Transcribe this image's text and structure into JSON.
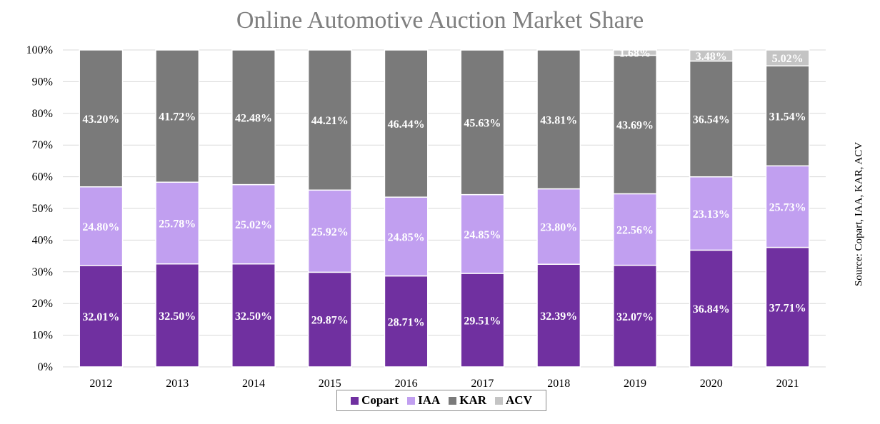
{
  "title": "Online Automotive Auction Market Share",
  "source": "Source: Copart, IAA, KAR, ACV",
  "chart_data": {
    "type": "bar",
    "stacked": true,
    "title": "Online Automotive Auction Market Share",
    "categories": [
      "2012",
      "2013",
      "2014",
      "2015",
      "2016",
      "2017",
      "2018",
      "2019",
      "2020",
      "2021"
    ],
    "ylim": [
      0,
      100
    ],
    "yticks": [
      "0%",
      "10%",
      "20%",
      "30%",
      "40%",
      "50%",
      "60%",
      "70%",
      "80%",
      "90%",
      "100%"
    ],
    "grid": true,
    "legend_position": "bottom",
    "series": [
      {
        "name": "Copart",
        "color": "#7030a0",
        "values": [
          32.01,
          32.5,
          32.5,
          29.87,
          28.71,
          29.51,
          32.39,
          32.07,
          36.84,
          37.71
        ],
        "labels": [
          "32.01%",
          "32.50%",
          "32.50%",
          "29.87%",
          "28.71%",
          "29.51%",
          "32.39%",
          "32.07%",
          "36.84%",
          "37.71%"
        ]
      },
      {
        "name": "IAA",
        "color": "#c19ff0",
        "values": [
          24.8,
          25.78,
          25.02,
          25.92,
          24.85,
          24.85,
          23.8,
          22.56,
          23.13,
          25.73
        ],
        "labels": [
          "24.80%",
          "25.78%",
          "25.02%",
          "25.92%",
          "24.85%",
          "24.85%",
          "23.80%",
          "22.56%",
          "23.13%",
          "25.73%"
        ]
      },
      {
        "name": "KAR",
        "color": "#7a7a7a",
        "values": [
          43.2,
          41.72,
          42.48,
          44.21,
          46.44,
          45.63,
          43.81,
          43.69,
          36.54,
          31.54
        ],
        "labels": [
          "43.20%",
          "41.72%",
          "42.48%",
          "44.21%",
          "46.44%",
          "45.63%",
          "43.81%",
          "43.69%",
          "36.54%",
          "31.54%"
        ]
      },
      {
        "name": "ACV",
        "color": "#c4c4c4",
        "values": [
          0,
          0,
          0,
          0,
          0,
          0,
          0,
          1.68,
          3.48,
          5.02
        ],
        "labels": [
          "",
          "",
          "",
          "",
          "",
          "",
          "",
          "1.68%",
          "3.48%",
          "5.02%"
        ]
      }
    ]
  }
}
